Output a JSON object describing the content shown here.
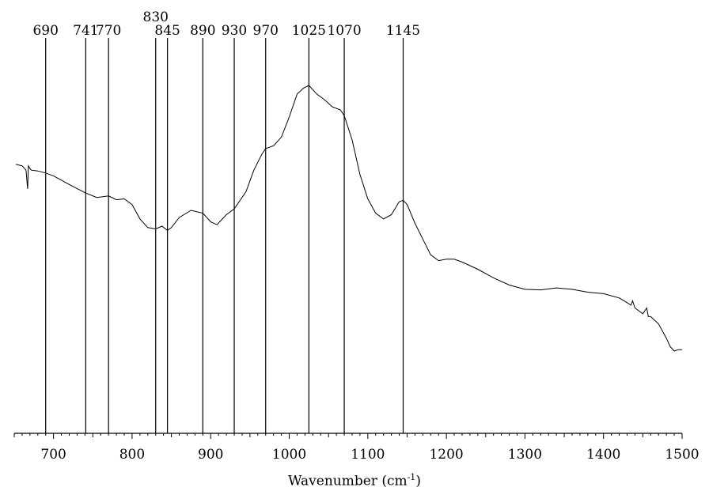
{
  "chart_data": {
    "type": "line",
    "xlabel": "Wavenumber (cm",
    "xlabel_sup": "-1",
    "xlabel_end": ")",
    "xlim": [
      650,
      1500
    ],
    "y_axis_visible": false,
    "grid": false,
    "x_ticks": [
      "700",
      "800",
      "900",
      "1000",
      "1100",
      "1200",
      "1300",
      "1400",
      "1500"
    ],
    "peak_lines": [
      {
        "x": 690,
        "label": "690"
      },
      {
        "x": 741,
        "label": "741"
      },
      {
        "x": 770,
        "label": "770"
      },
      {
        "x": 830,
        "label": "830"
      },
      {
        "x": 845,
        "label": "845"
      },
      {
        "x": 890,
        "label": "890"
      },
      {
        "x": 930,
        "label": "930"
      },
      {
        "x": 970,
        "label": "970"
      },
      {
        "x": 1025,
        "label": "1025"
      },
      {
        "x": 1070,
        "label": "1070"
      },
      {
        "x": 1145,
        "label": "1145"
      }
    ],
    "series": [
      {
        "color": "#000000",
        "x": [
          652,
          660,
          665,
          667,
          668,
          670,
          672,
          680,
          690,
          700,
          720,
          741,
          755,
          770,
          780,
          790,
          800,
          810,
          820,
          830,
          838,
          845,
          850,
          860,
          875,
          890,
          900,
          908,
          920,
          930,
          945,
          955,
          965,
          970,
          980,
          990,
          1000,
          1010,
          1018,
          1025,
          1035,
          1045,
          1055,
          1065,
          1070,
          1080,
          1090,
          1100,
          1110,
          1120,
          1130,
          1140,
          1145,
          1150,
          1160,
          1170,
          1180,
          1190,
          1200,
          1210,
          1220,
          1240,
          1260,
          1280,
          1300,
          1320,
          1340,
          1360,
          1380,
          1400,
          1420,
          1435,
          1437,
          1440,
          1450,
          1455,
          1457,
          1460,
          1470,
          1480,
          1485,
          1490,
          1495,
          1500
        ],
        "y": [
          0.735,
          0.73,
          0.715,
          0.65,
          0.73,
          0.72,
          0.715,
          0.712,
          0.705,
          0.695,
          0.665,
          0.635,
          0.62,
          0.625,
          0.612,
          0.615,
          0.595,
          0.545,
          0.515,
          0.51,
          0.52,
          0.505,
          0.515,
          0.55,
          0.575,
          0.565,
          0.535,
          0.525,
          0.56,
          0.58,
          0.64,
          0.715,
          0.77,
          0.79,
          0.8,
          0.83,
          0.9,
          0.98,
          1.0,
          1.01,
          0.98,
          0.96,
          0.935,
          0.925,
          0.905,
          0.82,
          0.7,
          0.615,
          0.565,
          0.545,
          0.56,
          0.605,
          0.61,
          0.595,
          0.53,
          0.475,
          0.42,
          0.4,
          0.405,
          0.405,
          0.395,
          0.37,
          0.34,
          0.315,
          0.3,
          0.298,
          0.305,
          0.3,
          0.29,
          0.285,
          0.27,
          0.245,
          0.26,
          0.235,
          0.215,
          0.235,
          0.205,
          0.205,
          0.18,
          0.13,
          0.1,
          0.085,
          0.09,
          0.09
        ]
      }
    ]
  }
}
